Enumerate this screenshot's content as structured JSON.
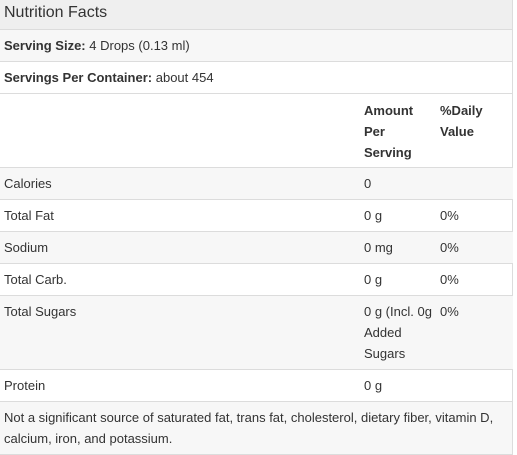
{
  "title": "Nutrition Facts",
  "serving_size": {
    "label": "Serving Size:",
    "value": "4 Drops (0.13 ml)"
  },
  "servings_per_container": {
    "label": "Servings Per Container:",
    "value": "about 454"
  },
  "columns": {
    "amount": "Amount Per Serving",
    "daily_value": "%Daily Value"
  },
  "rows": [
    {
      "name": "Calories",
      "amount": "0",
      "daily_value": ""
    },
    {
      "name": "Total Fat",
      "amount": "0 g",
      "daily_value": "0%"
    },
    {
      "name": "Sodium",
      "amount": "0 mg",
      "daily_value": "0%"
    },
    {
      "name": "Total Carb.",
      "amount": "0 g",
      "daily_value": "0%"
    },
    {
      "name": "Total Sugars",
      "amount": "0 g (Incl. 0g Added Sugars",
      "daily_value": "0%"
    },
    {
      "name": "Protein",
      "amount": "0 g",
      "daily_value": ""
    }
  ],
  "footnote": "Not a significant source of saturated fat, trans fat, cholesterol, dietary fiber, vitamin D, calcium, iron, and potassium."
}
